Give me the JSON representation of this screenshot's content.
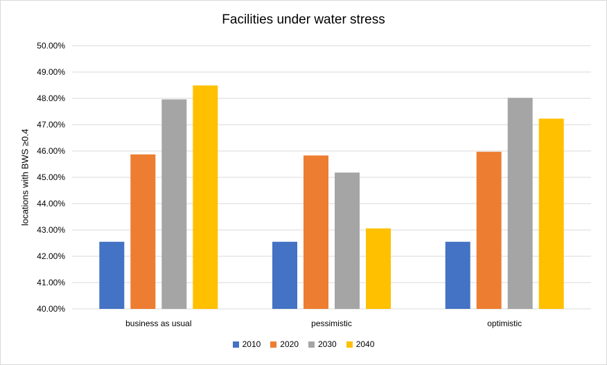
{
  "chart_data": {
    "type": "bar",
    "title": "Facilities under water stress",
    "xlabel": "",
    "ylabel": "locations with BWS ≥0.4",
    "ylim": [
      40,
      50
    ],
    "y_ticks": [
      "40.00%",
      "41.00%",
      "42.00%",
      "43.00%",
      "44.00%",
      "45.00%",
      "46.00%",
      "47.00%",
      "48.00%",
      "49.00%",
      "50.00%"
    ],
    "categories": [
      "business as usual",
      "pessimistic",
      "optimistic"
    ],
    "series": [
      {
        "name": "2010",
        "color": "#4472c4",
        "values": [
          42.55,
          42.55,
          42.55
        ]
      },
      {
        "name": "2020",
        "color": "#ed7d31",
        "values": [
          45.87,
          45.83,
          45.97
        ]
      },
      {
        "name": "2030",
        "color": "#a5a5a5",
        "values": [
          47.96,
          45.18,
          48.02
        ]
      },
      {
        "name": "2040",
        "color": "#ffc000",
        "values": [
          48.49,
          43.06,
          47.23
        ]
      }
    ],
    "grid": true,
    "legend": "bottom"
  }
}
